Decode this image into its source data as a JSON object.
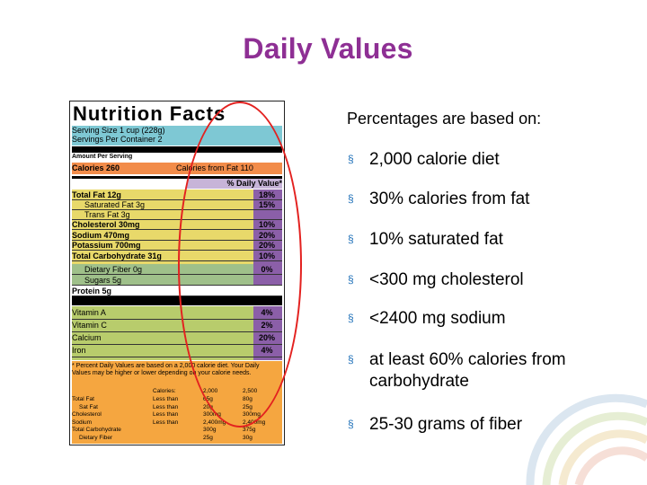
{
  "title": "Daily Values",
  "heading": "Percentages are based on:",
  "bullets": [
    {
      "marker": "§",
      "text": "2,000 calorie diet"
    },
    {
      "marker": "§",
      "text": "30% calories from fat"
    },
    {
      "marker": "§",
      "text": "10% saturated fat"
    },
    {
      "marker": "§",
      "text": "<300 mg cholesterol"
    },
    {
      "marker": "§",
      "text": "<2400 mg sodium"
    },
    {
      "marker": "§",
      "text": "at least 60% calories from carbohydrate"
    },
    {
      "marker": "§",
      "text": "25-30 grams of fiber"
    }
  ],
  "nutrition_label": {
    "title": "Nutrition Facts",
    "serving_size": "Serving Size 1 cup (228g)",
    "servings": "Servings Per Container 2",
    "amount_per_serving": "Amount Per Serving",
    "calories": "Calories 260",
    "calories_fat": "Calories from Fat 110",
    "dv_header": "% Daily Value*",
    "nutrients": [
      {
        "name": "Total Fat 12g",
        "pct": "18%"
      },
      {
        "name": "Saturated Fat 3g",
        "pct": "15%"
      },
      {
        "name": "Trans Fat 3g",
        "pct": ""
      },
      {
        "name": "Cholesterol 30mg",
        "pct": "10%"
      },
      {
        "name": "Sodium 470mg",
        "pct": "20%"
      },
      {
        "name": "Potassium 700mg",
        "pct": "20%"
      },
      {
        "name": "Total Carbohydrate 31g",
        "pct": "10%"
      },
      {
        "name": "Dietary Fiber 0g",
        "pct": "0%"
      },
      {
        "name": "Sugars 5g",
        "pct": ""
      },
      {
        "name": "Protein 5g",
        "pct": ""
      }
    ],
    "vitamins": [
      {
        "name": "Vitamin A",
        "pct": "4%"
      },
      {
        "name": "Vitamin C",
        "pct": "2%"
      },
      {
        "name": "Calcium",
        "pct": "20%"
      },
      {
        "name": "Iron",
        "pct": "4%"
      }
    ],
    "footnote": "* Percent Daily Values are based on a 2,000 calorie diet. Your Daily Values may be higher or lower depending on your calorie needs.",
    "table_header": {
      "label": "",
      "col0": "Calories:",
      "col1": "2,000",
      "col2": "2,500"
    },
    "table_rows": [
      {
        "name": "Total Fat",
        "cmp": "Less than",
        "v1": "65g",
        "v2": "80g"
      },
      {
        "name": "Sat Fat",
        "cmp": "Less than",
        "v1": "20g",
        "v2": "25g"
      },
      {
        "name": "Cholesterol",
        "cmp": "Less than",
        "v1": "300mg",
        "v2": "300mg"
      },
      {
        "name": "Sodium",
        "cmp": "Less than",
        "v1": "2,400mg",
        "v2": "2,400mg"
      },
      {
        "name": "Total Carbohydrate",
        "cmp": "",
        "v1": "300g",
        "v2": "375g"
      },
      {
        "name": "Dietary Fiber",
        "cmp": "",
        "v1": "25g",
        "v2": "30g"
      }
    ]
  },
  "colors": {
    "title": "#8e2f94",
    "bullet_marker": "#1d6fb8",
    "ellipse": "#e3211f",
    "serving_band": "#7ec8d4",
    "calories_band": "#f28c4a",
    "nutrient_band": "#e8d96a",
    "fiber_band": "#9fc08a",
    "vitamin_band": "#b8cc6c",
    "footnote_band": "#f5a640",
    "pct_band": "#8b5fa8"
  }
}
